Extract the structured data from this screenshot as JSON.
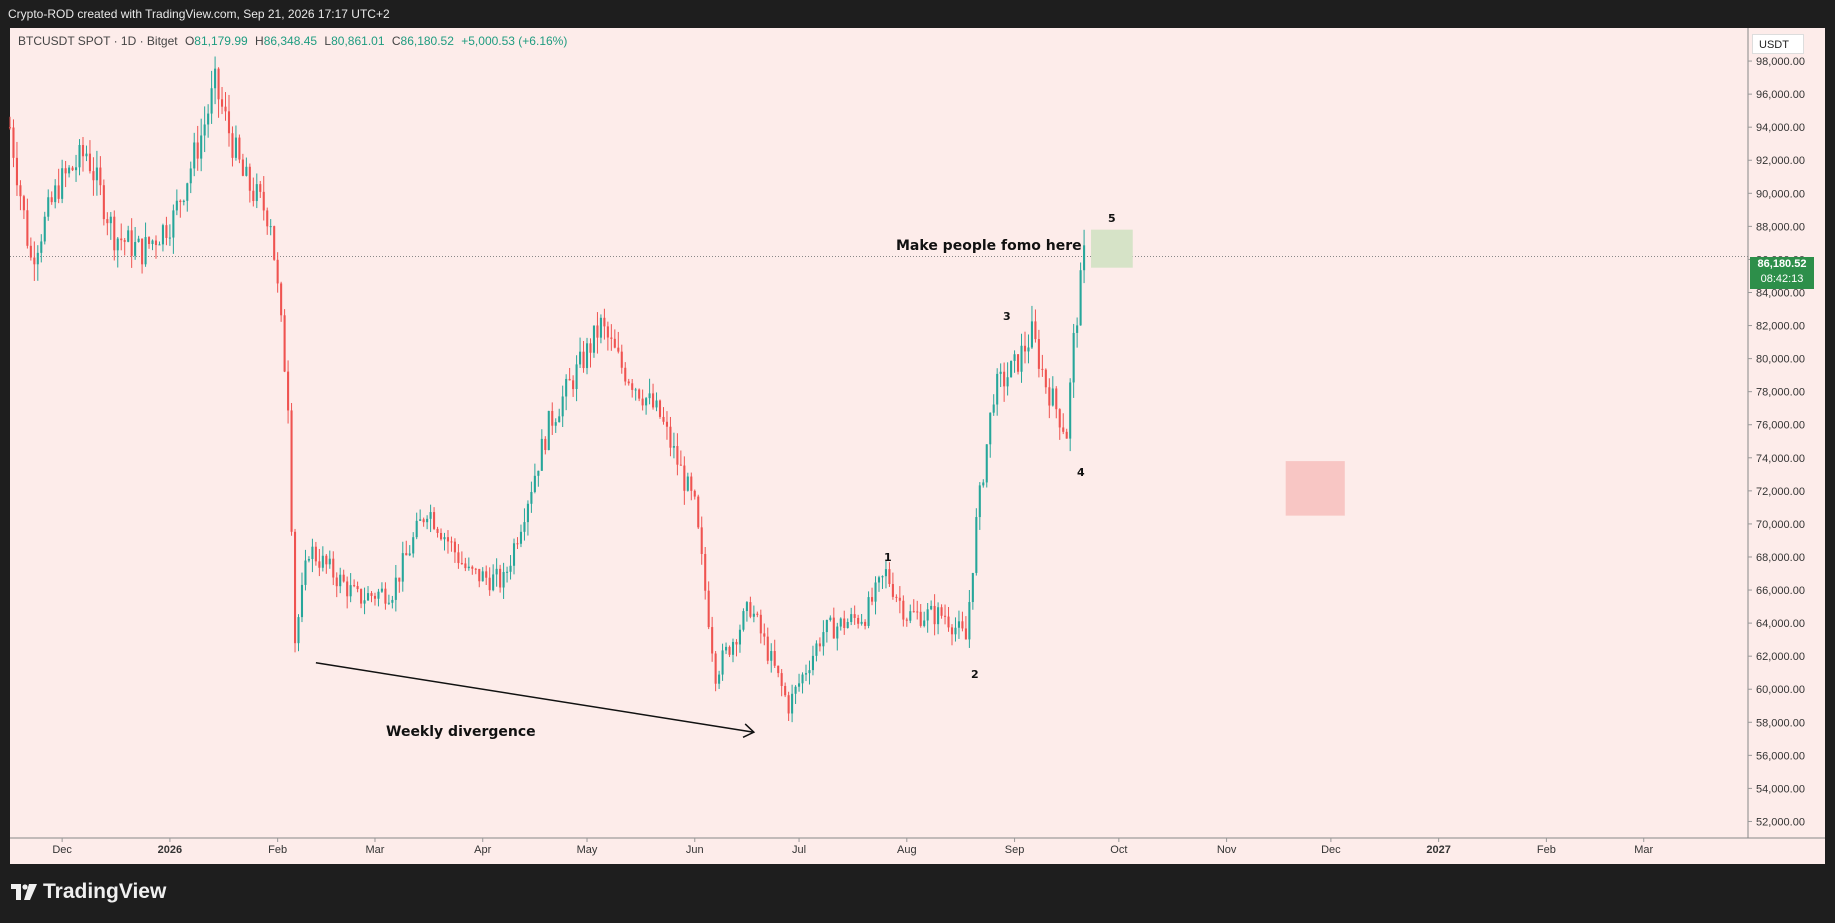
{
  "header": {
    "credit": "Crypto-ROD created with TradingView.com, Sep 21, 2026 17:17 UTC+2"
  },
  "symbol": {
    "name": "BTCUSDT SPOT · 1D · Bitget",
    "open_label": "O",
    "open": "81,179.99",
    "high_label": "H",
    "high": "86,348.45",
    "low_label": "L",
    "low": "80,861.01",
    "close_label": "C",
    "close": "86,180.52",
    "change": "+5,000.53 (+6.16%)"
  },
  "currency": "USDT",
  "last_price": {
    "value": "86,180.52",
    "countdown": "08:42:13"
  },
  "colors": {
    "background": "#fdecea",
    "up": "#26a69a",
    "down": "#ef5350",
    "tag": "#2d8f4a"
  },
  "annotations": {
    "fomo": "Make people fomo here",
    "divergence": "Weekly divergence",
    "waves": [
      "1",
      "2",
      "3",
      "4",
      "5"
    ]
  },
  "brand": {
    "name": "TradingView"
  },
  "chart_data": {
    "type": "candlestick",
    "title": "BTCUSDT SPOT · 1D · Bitget",
    "ylim": [
      51000,
      100000
    ],
    "y_ticks": [
      52000,
      54000,
      56000,
      58000,
      60000,
      62000,
      64000,
      66000,
      68000,
      70000,
      72000,
      74000,
      76000,
      78000,
      80000,
      82000,
      84000,
      86000,
      88000,
      90000,
      92000,
      94000,
      96000,
      98000
    ],
    "y_tick_labels": [
      "52,000.00",
      "54,000.00",
      "56,000.00",
      "58,000.00",
      "60,000.00",
      "62,000.00",
      "64,000.00",
      "66,000.00",
      "68,000.00",
      "70,000.00",
      "72,000.00",
      "74,000.00",
      "76,000.00",
      "78,000.00",
      "80,000.00",
      "82,000.00",
      "84,000.00",
      "86,000.00",
      "88,000.00",
      "90,000.00",
      "92,000.00",
      "94,000.00",
      "96,000.00",
      "98,000.00"
    ],
    "x_tick_labels": [
      "Dec",
      "2026",
      "Feb",
      "Mar",
      "Apr",
      "May",
      "Jun",
      "Jul",
      "Aug",
      "Sep",
      "Oct",
      "Nov",
      "Dec",
      "2027",
      "Feb",
      "Mar"
    ],
    "x_tick_dates": [
      "2025-12-01",
      "2026-01-01",
      "2026-02-01",
      "2026-03-01",
      "2026-04-01",
      "2026-05-01",
      "2026-06-01",
      "2026-07-01",
      "2026-08-01",
      "2026-09-01",
      "2026-10-01",
      "2026-11-01",
      "2026-12-01",
      "2027-01-01",
      "2027-02-01",
      "2027-03-01"
    ],
    "x_range": [
      "2025-11-16",
      "2027-03-31"
    ],
    "last_close": 86180.52,
    "path_points": [
      [
        "2025-11-16",
        94000
      ],
      [
        "2025-11-22",
        86000
      ],
      [
        "2025-11-30",
        90500
      ],
      [
        "2025-12-08",
        92500
      ],
      [
        "2025-12-16",
        87500
      ],
      [
        "2025-12-24",
        86500
      ],
      [
        "2026-01-02",
        88500
      ],
      [
        "2026-01-10",
        93500
      ],
      [
        "2026-01-14",
        96500
      ],
      [
        "2026-01-22",
        91000
      ],
      [
        "2026-01-30",
        88500
      ],
      [
        "2026-02-04",
        77500
      ],
      [
        "2026-02-06",
        63000
      ],
      [
        "2026-02-10",
        68500
      ],
      [
        "2026-02-24",
        65500
      ],
      [
        "2026-03-06",
        66000
      ],
      [
        "2026-03-16",
        71000
      ],
      [
        "2026-03-28",
        67000
      ],
      [
        "2026-04-07",
        66500
      ],
      [
        "2026-04-20",
        76000
      ],
      [
        "2026-05-05",
        82000
      ],
      [
        "2026-05-11",
        79500
      ],
      [
        "2026-05-22",
        76500
      ],
      [
        "2026-06-01",
        71000
      ],
      [
        "2026-06-07",
        61000
      ],
      [
        "2026-06-17",
        65000
      ],
      [
        "2026-06-28",
        59000
      ],
      [
        "2026-07-08",
        63500
      ],
      [
        "2026-07-20",
        64500
      ],
      [
        "2026-07-26",
        67000
      ],
      [
        "2026-08-01",
        64500
      ],
      [
        "2026-08-12",
        64500
      ],
      [
        "2026-08-18",
        63000
      ],
      [
        "2026-08-21",
        70000
      ],
      [
        "2026-08-26",
        78000
      ],
      [
        "2026-09-01",
        79500
      ],
      [
        "2026-09-06",
        81500
      ],
      [
        "2026-09-10",
        78500
      ],
      [
        "2026-09-16",
        75500
      ],
      [
        "2026-09-18",
        81000
      ],
      [
        "2026-09-21",
        86180
      ]
    ],
    "wave_labels": [
      {
        "label": "1",
        "date": "2026-07-26",
        "price": 67800
      },
      {
        "label": "2",
        "date": "2026-08-18",
        "price": 61500
      },
      {
        "label": "3",
        "date": "2026-09-04",
        "price": 84500
      },
      {
        "label": "4",
        "date": "2026-09-18",
        "price": 74000
      },
      {
        "label": "5",
        "date": "2026-09-27",
        "price": 90500
      }
    ],
    "zones": [
      {
        "name": "fomo-zone",
        "color": "#d6e3c7",
        "x0": "2026-09-23",
        "x1": "2026-10-05",
        "y0": 85500,
        "y1": 87800
      },
      {
        "name": "target-zone",
        "color": "#f8c6c4",
        "x0": "2026-11-18",
        "x1": "2026-12-05",
        "y0": 70500,
        "y1": 73800
      }
    ],
    "divergence_line": {
      "x0": "2026-02-12",
      "y0": 61600,
      "x1": "2026-06-18",
      "y1": 57400
    }
  }
}
